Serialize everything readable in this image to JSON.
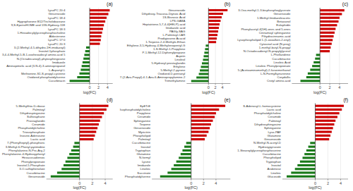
{
  "chart_data": [
    {
      "type": "bar",
      "orientation": "horizontal",
      "title": "(a)",
      "xlabel": "log(FC)",
      "categories": [
        "Cucurbitacin",
        "Oxidized phosphatidylserine",
        "Methionine-S1-S-propyl-cysteine",
        "L-Aspartyl-L",
        "Aminopimelic acid (3-N-4)-3-aminopropanol",
        "Imidazole",
        "N-(Octadecanoyl)-phytosphingosine",
        "3,4-4-Methyl-5-B-1-oxohexadecyl amino-acid 5",
        "Inositol-1phosphate",
        "3-(2-Methyl-4-5-dihydro-1H-imidazoyl)",
        "LysoPC 20:3",
        "LysoPC 17:0",
        "Aldosterone",
        "1-Hexadecylglycerophosphocholine",
        "LysoPC 18:3",
        "9,S-EpetreHOME and 13S-Hydroxy-11E",
        "Hygrophorone B12/Tricholobarzane",
        "LysoPC 18:4",
        "Ginsenoside",
        "LysoPC 20:4"
      ],
      "values": [
        -4.5,
        -2.8,
        -2.3,
        -2.0,
        -1.8,
        -1.6,
        -1.4,
        -1.2,
        -1.0,
        -0.8,
        2.3,
        2.5,
        2.6,
        2.8,
        3.0,
        3.2,
        3.5,
        3.8,
        4.2,
        4.5
      ],
      "colors": [
        "#1a7a1a",
        "#1a7a1a",
        "#1a7a1a",
        "#1a7a1a",
        "#1a7a1a",
        "#1a7a1a",
        "#1a7a1a",
        "#1a7a1a",
        "#1a7a1a",
        "#1a7a1a",
        "#cc0000",
        "#cc0000",
        "#cc0000",
        "#cc0000",
        "#cc0000",
        "#cc0000",
        "#cc0000",
        "#cc0000",
        "#cc0000",
        "#cc0000"
      ],
      "xlim": [
        -5.175,
        5.175
      ],
      "xticks": [
        0,
        2,
        4
      ],
      "grid": true
    },
    {
      "type": "bar",
      "orientation": "horizontal",
      "title": "(b)",
      "xlabel": "log(FC)",
      "categories": [
        "Trimethylamine",
        "7-(2-Aza-Propyl)-4-1-Aza-6-Aminopropylamine-2",
        "Oxidized-D-pentanyl",
        "5-Methyl-2-pyrone",
        "Ethylene",
        "5-Hydroxyl-prostaglandin",
        "Linoleol",
        "Aspirin",
        "P-1-Methyl-12-Diphenylpropane",
        "1-S-Methyl-1-Propylene",
        "Ethylene-3,5-Hydroxy-4-Methylenepentyl-G",
        "1-Terpene-2-4-Methyle-Ethan",
        "Prodigiosene Acacid",
        "L-Palmitoyl-CAR",
        "PAGly-SAG",
        "Imidazole acid",
        "Heptatriene-5,7,4-4(HELP)-acid",
        "LPS-GABA",
        "1S-Bisnosic Acid",
        "Dihydroxy-Triacosa-Diynoic Acid",
        "Ginsenoside"
      ],
      "values": [
        -5.0,
        -3.5,
        -2.8,
        -2.5,
        -2.2,
        -1.9,
        -1.6,
        -1.4,
        -1.2,
        -1.0,
        -0.8,
        2.2,
        2.4,
        2.6,
        2.8,
        3.0,
        3.2,
        3.5,
        3.8,
        4.2,
        5.5
      ],
      "colors": [
        "#1a7a1a",
        "#1a7a1a",
        "#1a7a1a",
        "#1a7a1a",
        "#1a7a1a",
        "#1a7a1a",
        "#1a7a1a",
        "#1a7a1a",
        "#1a7a1a",
        "#1a7a1a",
        "#1a7a1a",
        "#cc0000",
        "#cc0000",
        "#cc0000",
        "#cc0000",
        "#cc0000",
        "#cc0000",
        "#cc0000",
        "#cc0000",
        "#cc0000",
        "#cc0000"
      ],
      "xlim": [
        -6.325,
        6.325
      ],
      "xticks": [
        0,
        2,
        4
      ],
      "grid": true
    },
    {
      "type": "bar",
      "orientation": "horizontal",
      "title": "(c)",
      "xlabel": "log(FC)",
      "categories": [
        "Crotyl amino-acid",
        "Corydallis",
        "L-N-Formylkynurenine",
        "5-(Acetoaminomethyl)-2-furanmethanol",
        "Linoleic Phenylpropionate",
        "Linoleic Acid",
        "Cucurbitacine",
        "L-Phellandrine",
        "N-Octadecadienyl-N-propylglycerol",
        "1-methyl-butyl-N-propyl",
        "Cytosinol acid (N-preg)",
        "Lysophospholipid 1-(1-oxoalken-2-enyl)",
        "Pihydrocinnamic-acid",
        "Cinnamoyl sphinganine",
        "Phenylacetyl-4(5H)-ones and 5-ones",
        "Eulophidin",
        "Betaxanol",
        "1-Methyl-Imidazoleacetic",
        "Ginsenoside",
        "3-Oxo-methyl-1-3-bisphosphoglycerate"
      ],
      "values": [
        -4.0,
        -2.8,
        -2.5,
        -2.0,
        -1.6,
        -1.3,
        -1.0,
        -0.8,
        2.0,
        2.2,
        2.4,
        2.6,
        2.8,
        3.0,
        3.2,
        3.5,
        3.8,
        4.0,
        4.5,
        5.0
      ],
      "colors": [
        "#1a7a1a",
        "#1a7a1a",
        "#1a7a1a",
        "#1a7a1a",
        "#1a7a1a",
        "#1a7a1a",
        "#1a7a1a",
        "#1a7a1a",
        "#cc0000",
        "#cc0000",
        "#cc0000",
        "#cc0000",
        "#cc0000",
        "#cc0000",
        "#cc0000",
        "#cc0000",
        "#cc0000",
        "#cc0000",
        "#cc0000",
        "#cc0000"
      ],
      "xlim": [
        -5.75,
        5.75
      ],
      "xticks": [
        0,
        2,
        4
      ],
      "grid": true
    },
    {
      "type": "bar",
      "orientation": "horizontal",
      "title": "(d)",
      "xlabel": "log(FC)",
      "categories": [
        "Ginsenoside",
        "Cucurbitacine",
        "3-O-sulfophenolate",
        "Inositol-5-Phosphate",
        "Phenylpropionate",
        "Hexacosadienoic",
        "Phenylalanine-4-Hydroxyphenyl",
        "Phenylalanine-N-Pro-Arg-2",
        "3-Methyl-6-Phenyl-pyrimidine",
        "7-(Phenylheptyl)-phosphoric",
        "Lactic acid",
        "Inosine-Adenosine",
        "Triosephosphate",
        "Phosphatidylcholine",
        "Ceramide",
        "Prostaglandin",
        "Sulforaphane",
        "Dihydrospingosine",
        "Palmitoyl",
        "5-Methylthio-D-ribose"
      ],
      "values": [
        -4.5,
        -3.5,
        -2.8,
        -2.5,
        -2.2,
        -1.9,
        -1.6,
        -1.3,
        -1.0,
        -0.8,
        2.2,
        2.4,
        2.6,
        2.8,
        3.0,
        3.2,
        3.5,
        3.8,
        4.2,
        4.5
      ],
      "colors": [
        "#1a7a1a",
        "#1a7a1a",
        "#1a7a1a",
        "#1a7a1a",
        "#1a7a1a",
        "#1a7a1a",
        "#1a7a1a",
        "#1a7a1a",
        "#1a7a1a",
        "#1a7a1a",
        "#cc0000",
        "#cc0000",
        "#cc0000",
        "#cc0000",
        "#cc0000",
        "#cc0000",
        "#cc0000",
        "#cc0000",
        "#cc0000",
        "#cc0000"
      ],
      "xlim": [
        -5.175,
        5.175
      ],
      "xticks": [
        0,
        2,
        4
      ],
      "grid": true
    },
    {
      "type": "bar",
      "orientation": "horizontal",
      "title": "(e)",
      "xlabel": "log(FC)",
      "categories": [
        "Phosphatidylserine",
        "Succinate",
        "Linoleic",
        "Imidazole",
        "Lysine",
        "N-formyl",
        "Glutamine",
        "Tryptophan",
        "Inositol",
        "Cucurbitacine",
        "Palmitoyl",
        "Phospholipid",
        "Myricitrin",
        "Ginsenoside",
        "Terpene",
        "Sphinganine",
        "Ceramide",
        "Propylene",
        "Isophosphatidylcholine",
        "EpETrE"
      ],
      "values": [
        -5.0,
        -3.8,
        -3.2,
        -2.8,
        -2.4,
        -2.0,
        -1.7,
        -1.4,
        -1.1,
        -0.8,
        2.2,
        2.5,
        2.8,
        3.0,
        3.2,
        3.5,
        3.8,
        4.0,
        4.5,
        5.5
      ],
      "colors": [
        "#1a7a1a",
        "#1a7a1a",
        "#1a7a1a",
        "#1a7a1a",
        "#1a7a1a",
        "#1a7a1a",
        "#1a7a1a",
        "#1a7a1a",
        "#1a7a1a",
        "#1a7a1a",
        "#cc0000",
        "#cc0000",
        "#cc0000",
        "#cc0000",
        "#cc0000",
        "#cc0000",
        "#cc0000",
        "#cc0000",
        "#cc0000",
        "#cc0000"
      ],
      "xlim": [
        -6.325,
        6.325
      ],
      "xticks": [
        0,
        2,
        4
      ],
      "grid": true
    },
    {
      "type": "bar",
      "orientation": "horizontal",
      "title": "(f)",
      "xlabel": "log(FC)",
      "categories": [
        "Glucoside",
        "Linoleic",
        "Arabinose",
        "Inositol",
        "Tryptophan",
        "Phospholipid",
        "Cucurbitacine",
        "1-Stearoylglycerophosphoserine",
        "Hydroxypyruvate",
        "N-Methyl-N-acetyl-D",
        "Ginsenoside",
        "Glutamine",
        "Lyso-PAF",
        "Sphinganine",
        "Dihydrosphingosine",
        "Palmitoyl",
        "Ceramide",
        "Phosphatidylcholine",
        "Lactic acid",
        "S-Adenosyl-L-homocysteine"
      ],
      "values": [
        -4.5,
        -3.8,
        -3.2,
        -2.8,
        -2.4,
        -2.0,
        -1.7,
        -1.4,
        -1.1,
        -0.8,
        2.2,
        2.4,
        2.6,
        2.8,
        3.0,
        3.2,
        3.5,
        3.8,
        4.2,
        4.5
      ],
      "colors": [
        "#1a7a1a",
        "#1a7a1a",
        "#1a7a1a",
        "#1a7a1a",
        "#1a7a1a",
        "#1a7a1a",
        "#1a7a1a",
        "#1a7a1a",
        "#1a7a1a",
        "#1a7a1a",
        "#cc0000",
        "#cc0000",
        "#cc0000",
        "#cc0000",
        "#cc0000",
        "#cc0000",
        "#cc0000",
        "#cc0000",
        "#cc0000",
        "#cc0000"
      ],
      "xlim": [
        -5.175,
        5.175
      ],
      "xticks": [
        0,
        2,
        4
      ],
      "grid": true
    }
  ]
}
